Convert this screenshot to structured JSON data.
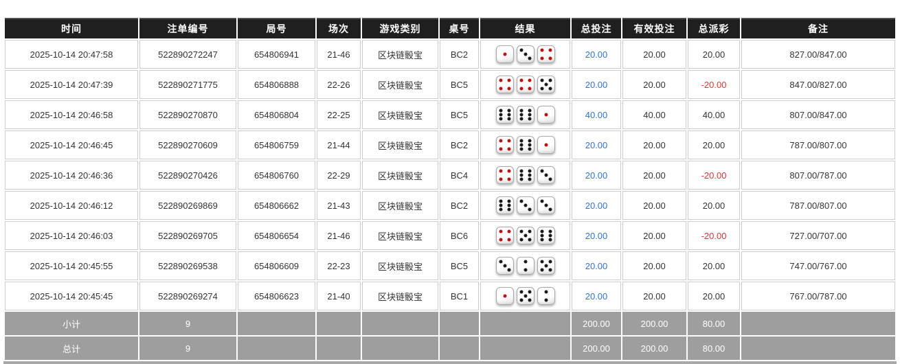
{
  "colors": {
    "header_bg": "#1f1f1f",
    "header_top_border": "#4e4e4e",
    "summary_bg": "#9e9e9e",
    "accent_blue": "#2e74d6",
    "negative_red": "#e63333",
    "cell_border": "#cccccc"
  },
  "table": {
    "columns": [
      {
        "key": "time",
        "label": "时间"
      },
      {
        "key": "bet_no",
        "label": "注单编号"
      },
      {
        "key": "round_no",
        "label": "局号"
      },
      {
        "key": "session",
        "label": "场次"
      },
      {
        "key": "game_type",
        "label": "游戏类别"
      },
      {
        "key": "table_no",
        "label": "桌号"
      },
      {
        "key": "result",
        "label": "结果"
      },
      {
        "key": "total_bet",
        "label": "总投注"
      },
      {
        "key": "valid_bet",
        "label": "有效投注"
      },
      {
        "key": "total_payout",
        "label": "总派彩"
      },
      {
        "key": "remark",
        "label": "备注"
      }
    ],
    "rows": [
      {
        "time": "2025-10-14 20:47:58",
        "bet_no": "522890272247",
        "round_no": "654806941",
        "session": "21-46",
        "game_type": "区块链骰宝",
        "table_no": "BC2",
        "dice": [
          1,
          3,
          4
        ],
        "total_bet": "20.00",
        "valid_bet": "20.00",
        "total_payout": "20.00",
        "payout_negative": false,
        "remark": "827.00/847.00"
      },
      {
        "time": "2025-10-14 20:47:39",
        "bet_no": "522890271775",
        "round_no": "654806888",
        "session": "22-26",
        "game_type": "区块链骰宝",
        "table_no": "BC5",
        "dice": [
          4,
          4,
          5
        ],
        "total_bet": "20.00",
        "valid_bet": "20.00",
        "total_payout": "-20.00",
        "payout_negative": true,
        "remark": "847.00/827.00"
      },
      {
        "time": "2025-10-14 20:46:58",
        "bet_no": "522890270870",
        "round_no": "654806804",
        "session": "22-25",
        "game_type": "区块链骰宝",
        "table_no": "BC5",
        "dice": [
          6,
          6,
          1
        ],
        "total_bet": "40.00",
        "valid_bet": "40.00",
        "total_payout": "40.00",
        "payout_negative": false,
        "remark": "807.00/847.00"
      },
      {
        "time": "2025-10-14 20:46:45",
        "bet_no": "522890270609",
        "round_no": "654806759",
        "session": "21-44",
        "game_type": "区块链骰宝",
        "table_no": "BC2",
        "dice": [
          4,
          6,
          1
        ],
        "total_bet": "20.00",
        "valid_bet": "20.00",
        "total_payout": "20.00",
        "payout_negative": false,
        "remark": "787.00/807.00"
      },
      {
        "time": "2025-10-14 20:46:36",
        "bet_no": "522890270426",
        "round_no": "654806760",
        "session": "22-29",
        "game_type": "区块链骰宝",
        "table_no": "BC4",
        "dice": [
          4,
          6,
          3
        ],
        "total_bet": "20.00",
        "valid_bet": "20.00",
        "total_payout": "-20.00",
        "payout_negative": true,
        "remark": "807.00/787.00"
      },
      {
        "time": "2025-10-14 20:46:12",
        "bet_no": "522890269869",
        "round_no": "654806662",
        "session": "21-43",
        "game_type": "区块链骰宝",
        "table_no": "BC2",
        "dice": [
          6,
          3,
          3
        ],
        "total_bet": "20.00",
        "valid_bet": "20.00",
        "total_payout": "20.00",
        "payout_negative": false,
        "remark": "787.00/807.00"
      },
      {
        "time": "2025-10-14 20:46:03",
        "bet_no": "522890269705",
        "round_no": "654806654",
        "session": "21-46",
        "game_type": "区块链骰宝",
        "table_no": "BC6",
        "dice": [
          4,
          5,
          6
        ],
        "total_bet": "20.00",
        "valid_bet": "20.00",
        "total_payout": "-20.00",
        "payout_negative": true,
        "remark": "727.00/707.00"
      },
      {
        "time": "2025-10-14 20:45:55",
        "bet_no": "522890269538",
        "round_no": "654806609",
        "session": "22-23",
        "game_type": "区块链骰宝",
        "table_no": "BC5",
        "dice": [
          3,
          2,
          5
        ],
        "total_bet": "20.00",
        "valid_bet": "20.00",
        "total_payout": "20.00",
        "payout_negative": false,
        "remark": "747.00/767.00"
      },
      {
        "time": "2025-10-14 20:45:45",
        "bet_no": "522890269274",
        "round_no": "654806623",
        "session": "21-40",
        "game_type": "区块链骰宝",
        "table_no": "BC1",
        "dice": [
          1,
          5,
          2
        ],
        "total_bet": "20.00",
        "valid_bet": "20.00",
        "total_payout": "20.00",
        "payout_negative": false,
        "remark": "767.00/787.00"
      }
    ],
    "summary_rows": [
      {
        "label": "小计",
        "count": "9",
        "total_bet": "200.00",
        "valid_bet": "200.00",
        "total_payout": "80.00"
      },
      {
        "label": "总计",
        "count": "9",
        "total_bet": "200.00",
        "valid_bet": "200.00",
        "total_payout": "80.00"
      }
    ]
  }
}
